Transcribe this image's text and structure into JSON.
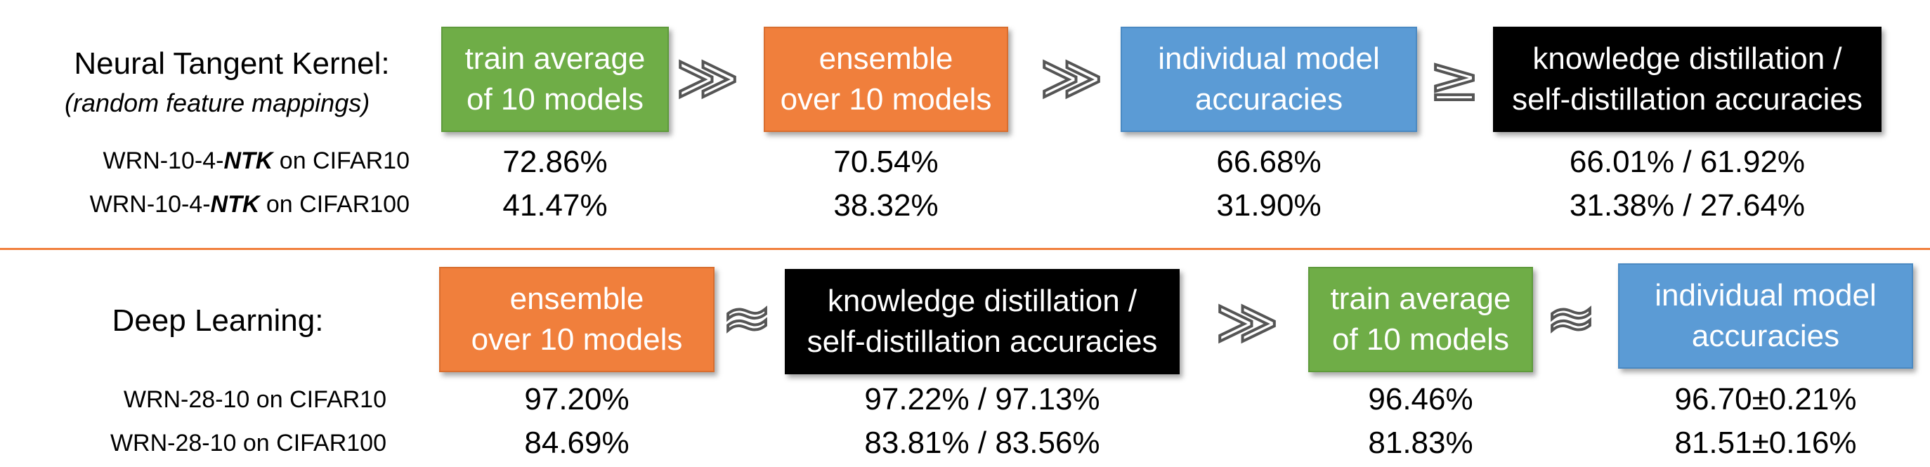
{
  "top": {
    "title": "Neural Tangent Kernel:",
    "subtitle": "(random feature mappings)",
    "boxes": [
      {
        "text": "train average\nof 10 models",
        "color": "#6fad47"
      },
      {
        "text": "ensemble\nover 10 models",
        "color": "#f07f3c"
      },
      {
        "text": "individual model\naccuracies",
        "color": "#5b9bd5"
      },
      {
        "text": "knowledge distillation /\nself-distillation accuracies",
        "color": "#000000"
      }
    ],
    "relations": [
      "≫",
      "≫",
      "≥"
    ],
    "rows": [
      {
        "label_pre": "WRN-10-4-",
        "label_em": "NTK",
        "label_post": " on CIFAR10",
        "values": [
          "72.86%",
          "70.54%",
          "66.68%",
          "66.01% / 61.92%"
        ]
      },
      {
        "label_pre": "WRN-10-4-",
        "label_em": "NTK",
        "label_post": " on CIFAR100",
        "values": [
          "41.47%",
          "38.32%",
          "31.90%",
          "31.38% / 27.64%"
        ]
      }
    ]
  },
  "bottom": {
    "title": "Deep Learning:",
    "boxes": [
      {
        "text": "ensemble\nover 10 models",
        "color": "#f07f3c"
      },
      {
        "text": "knowledge distillation /\nself-distillation accuracies",
        "color": "#000000"
      },
      {
        "text": "train average\nof 10 models",
        "color": "#6fad47"
      },
      {
        "text": "individual model\naccuracies",
        "color": "#5b9bd5"
      }
    ],
    "relations": [
      "≈",
      "≫",
      "≈"
    ],
    "rows": [
      {
        "label": "WRN-28-10 on CIFAR10",
        "values": [
          "97.20%",
          "97.22% / 97.13%",
          "96.46%",
          "96.70±0.21%"
        ]
      },
      {
        "label": "WRN-28-10 on CIFAR100",
        "values": [
          "84.69%",
          "83.81% / 83.56%",
          "81.83%",
          "81.51±0.16%"
        ]
      }
    ]
  }
}
